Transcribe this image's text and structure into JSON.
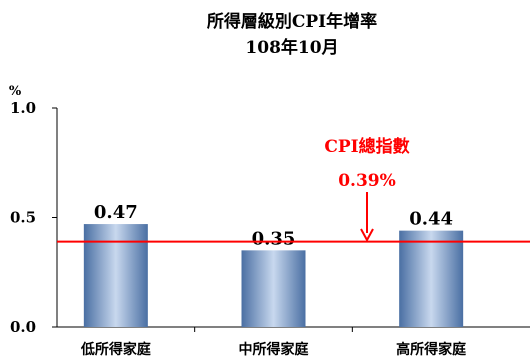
{
  "chart_data": {
    "type": "bar",
    "title": "所得層級別CPI年增率",
    "subtitle": "108年10月",
    "y_unit": "%",
    "ylim": [
      0,
      1.0
    ],
    "y_ticks": [
      "0.0",
      "0.5",
      "1.0"
    ],
    "categories": [
      "低所得家庭",
      "中所得家庭",
      "高所得家庭"
    ],
    "values": [
      0.47,
      0.35,
      0.44
    ],
    "data_labels": [
      "0.47",
      "0.35",
      "0.44"
    ],
    "reference_line": {
      "value": 0.39,
      "label": "CPI總指數",
      "value_label": "0.39%",
      "color": "#ff0000"
    },
    "bar_colors": {
      "edge": "#4a6fa3",
      "center": "#c8d8ee"
    },
    "grid": false
  }
}
